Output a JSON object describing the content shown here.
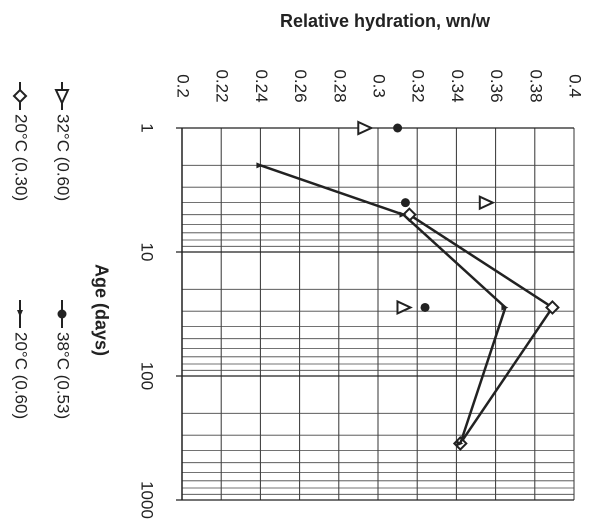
{
  "chart_data": {
    "type": "line",
    "title": "Relative hydration, wn/w",
    "x_label": "Age (days)",
    "log_x": true,
    "grid": true,
    "xlim": [
      1,
      1000
    ],
    "xticks": [
      1,
      10,
      100,
      1000
    ],
    "ylim": [
      0.2,
      0.4
    ],
    "yticks": [
      0.2,
      0.22,
      0.24,
      0.26,
      0.28,
      0.3,
      0.32,
      0.34,
      0.36,
      0.38,
      0.4
    ],
    "series": [
      {
        "name": "20°C  (0.30)",
        "color": "#222",
        "marker": "diamond",
        "line": true,
        "x": [
          5,
          28,
          350
        ],
        "values": [
          0.316,
          0.389,
          0.342
        ]
      },
      {
        "name": "20°C  (0.60)",
        "color": "#222",
        "marker": "small",
        "line": true,
        "x": [
          2,
          5,
          28,
          350
        ],
        "values": [
          0.24,
          0.313,
          0.365,
          0.342
        ]
      },
      {
        "name": "32°C  (0.60)",
        "color": "#222",
        "marker": "triangle",
        "line": false,
        "x": [
          1,
          4,
          28
        ],
        "values": [
          0.293,
          0.355,
          0.313
        ]
      },
      {
        "name": "38°C (0.53)",
        "color": "#222",
        "marker": "circle",
        "line": false,
        "x": [
          1,
          4,
          28
        ],
        "values": [
          0.31,
          0.314,
          0.324
        ]
      }
    ]
  }
}
